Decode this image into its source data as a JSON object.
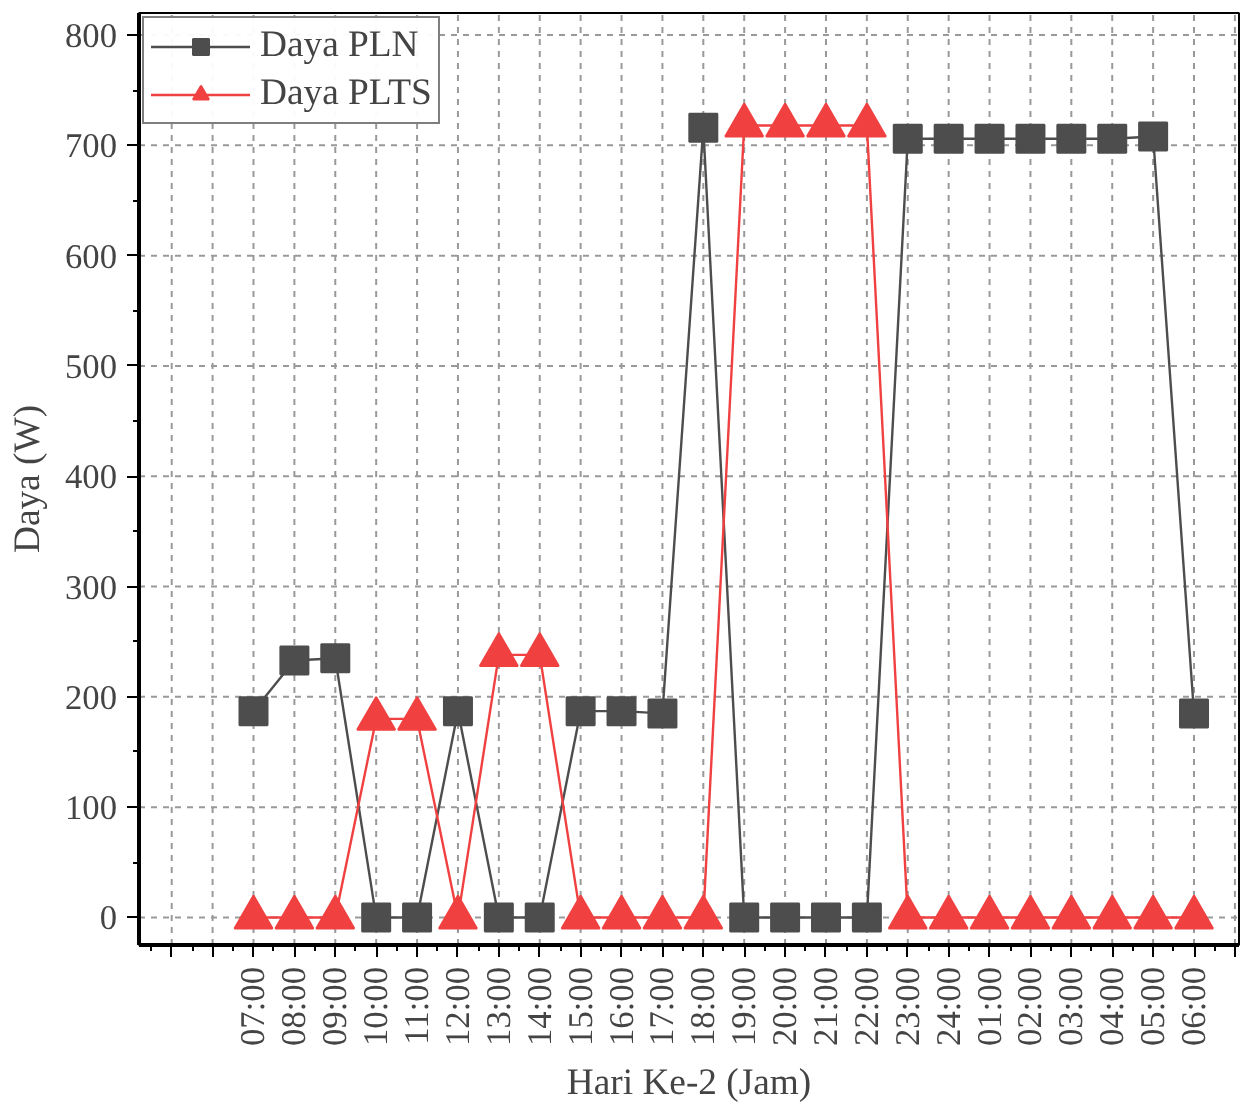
{
  "chart_data": {
    "type": "line",
    "xlabel": "Hari Ke-2 (Jam)",
    "ylabel": "Daya (W)",
    "categories": [
      "07:00",
      "08:00",
      "09:00",
      "10:00",
      "11:00",
      "12:00",
      "13:00",
      "14:00",
      "15:00",
      "16:00",
      "17:00",
      "18:00",
      "19:00",
      "20:00",
      "21:00",
      "22:00",
      "23:00",
      "24:00",
      "01:00",
      "02:00",
      "03:00",
      "04:00",
      "05:00",
      "06:00"
    ],
    "series": [
      {
        "name": "Daya PLN",
        "color": "#4d4d4d",
        "marker": "square",
        "values": [
          187,
          233,
          235,
          0,
          0,
          187,
          0,
          0,
          187,
          187,
          185,
          716,
          0,
          0,
          0,
          0,
          706,
          706,
          706,
          706,
          706,
          706,
          708,
          185
        ]
      },
      {
        "name": "Daya PLTS",
        "color": "#f04040",
        "marker": "triangle",
        "values": [
          0,
          0,
          0,
          180,
          180,
          0,
          238,
          238,
          0,
          0,
          0,
          0,
          718,
          718,
          718,
          718,
          0,
          0,
          0,
          0,
          0,
          0,
          0,
          0
        ]
      }
    ],
    "ylim": [
      -25,
      820
    ],
    "yticks": [
      0,
      100,
      200,
      300,
      400,
      500,
      600,
      700,
      800
    ],
    "grid": true,
    "legend": "top left",
    "line_style": "solid"
  }
}
